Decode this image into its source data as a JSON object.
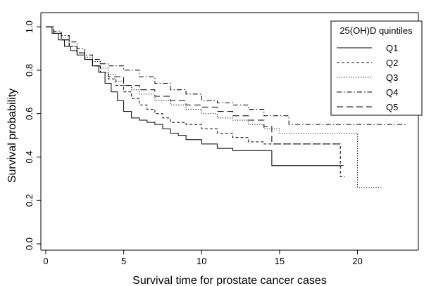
{
  "chart_data": {
    "type": "line",
    "xlabel": "Survival time for prostate cancer cases",
    "ylabel": "Survival probability",
    "xlim": [
      0,
      23.5
    ],
    "ylim": [
      0,
      1.02
    ],
    "x_ticks": [
      0,
      5,
      10,
      15,
      20
    ],
    "y_ticks": [
      0.0,
      0.2,
      0.4,
      0.6,
      0.8,
      1.0
    ],
    "x_tick_labels": [
      "0",
      "5",
      "10",
      "15",
      "20"
    ],
    "y_tick_labels": [
      "0.0",
      "0.2",
      "0.4",
      "0.6",
      "0.8",
      "1.0"
    ],
    "grid": false,
    "legend": {
      "title": "25(OH)D quintiles",
      "placement": "top-right"
    },
    "series": [
      {
        "name": "Q1",
        "dash": "solid",
        "x": [
          0,
          0.4,
          0.8,
          1.2,
          1.6,
          2.0,
          2.5,
          3.0,
          3.4,
          3.8,
          4.2,
          4.6,
          5.0,
          5.5,
          6.0,
          6.5,
          7.0,
          7.5,
          8.0,
          8.5,
          9.0,
          10.0,
          11.0,
          12.0,
          14.5,
          19.1
        ],
        "y": [
          1.0,
          0.97,
          0.94,
          0.91,
          0.89,
          0.87,
          0.85,
          0.82,
          0.79,
          0.74,
          0.7,
          0.66,
          0.61,
          0.58,
          0.57,
          0.56,
          0.55,
          0.53,
          0.51,
          0.5,
          0.48,
          0.46,
          0.44,
          0.43,
          0.36,
          0.36
        ]
      },
      {
        "name": "Q2",
        "dash": "dashed",
        "x": [
          0,
          0.5,
          1.0,
          1.5,
          2.0,
          2.5,
          3.0,
          3.5,
          4.0,
          4.5,
          5.0,
          5.5,
          6.0,
          6.5,
          7.0,
          7.5,
          8.0,
          9.0,
          10.0,
          11.0,
          12.0,
          13.0,
          14.0,
          15.0,
          18.9,
          19.2
        ],
        "y": [
          1.0,
          0.97,
          0.94,
          0.91,
          0.88,
          0.85,
          0.82,
          0.79,
          0.76,
          0.73,
          0.7,
          0.67,
          0.64,
          0.62,
          0.6,
          0.58,
          0.56,
          0.55,
          0.53,
          0.51,
          0.49,
          0.47,
          0.46,
          0.46,
          0.31,
          0.31
        ]
      },
      {
        "name": "Q3",
        "dash": "dotted",
        "x": [
          0,
          0.5,
          1.0,
          1.5,
          2.0,
          2.5,
          3.0,
          3.5,
          4.0,
          4.5,
          5.0,
          5.5,
          6.0,
          7.0,
          8.0,
          9.0,
          10.0,
          11.0,
          12.0,
          13.0,
          14.0,
          15.0,
          20.0,
          21.6
        ],
        "y": [
          1.0,
          0.97,
          0.94,
          0.91,
          0.88,
          0.86,
          0.84,
          0.81,
          0.78,
          0.75,
          0.73,
          0.71,
          0.69,
          0.66,
          0.64,
          0.62,
          0.6,
          0.58,
          0.57,
          0.55,
          0.53,
          0.51,
          0.26,
          0.26
        ]
      },
      {
        "name": "Q4",
        "dash": "dashdot",
        "x": [
          0,
          0.5,
          1.0,
          1.5,
          2.0,
          2.5,
          3.0,
          3.5,
          4.0,
          5.0,
          6.0,
          7.0,
          8.0,
          9.0,
          10.0,
          11.0,
          12.0,
          13.0,
          14.0,
          15.6,
          23.2
        ],
        "y": [
          1.0,
          0.98,
          0.96,
          0.93,
          0.9,
          0.87,
          0.85,
          0.83,
          0.82,
          0.8,
          0.77,
          0.74,
          0.71,
          0.69,
          0.66,
          0.65,
          0.64,
          0.62,
          0.59,
          0.55,
          0.55
        ]
      },
      {
        "name": "Q5",
        "dash": "longdash",
        "x": [
          0,
          0.5,
          1.0,
          1.5,
          2.0,
          2.5,
          3.0,
          3.5,
          4.0,
          5.0,
          6.0,
          7.0,
          8.0,
          9.0,
          10.0,
          11.0,
          12.0,
          13.0,
          14.0,
          14.5,
          19.0
        ],
        "y": [
          1.0,
          0.97,
          0.94,
          0.91,
          0.88,
          0.85,
          0.82,
          0.79,
          0.77,
          0.73,
          0.71,
          0.68,
          0.66,
          0.64,
          0.63,
          0.61,
          0.59,
          0.57,
          0.54,
          0.46,
          0.46
        ]
      }
    ]
  }
}
